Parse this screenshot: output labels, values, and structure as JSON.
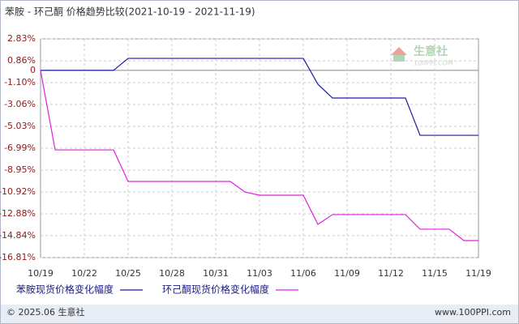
{
  "chart_data": {
    "type": "line",
    "title": "苯胺 - 环己酮 价格趋势比较(2021-10-19 - 2021-11-19)",
    "categories": [
      "10/19",
      null,
      null,
      "10/22",
      null,
      null,
      "10/25",
      null,
      null,
      "10/28",
      null,
      null,
      "10/31",
      null,
      null,
      "11/03",
      null,
      null,
      "11/06",
      null,
      null,
      "11/09",
      null,
      null,
      "11/12",
      null,
      null,
      "11/15",
      null,
      null,
      "11/19"
    ],
    "series": [
      {
        "name": "苯胺现货价格变化幅度",
        "color": "#1a1aa6",
        "values": [
          0,
          0,
          0,
          0,
          0,
          0,
          1.08,
          1.08,
          1.08,
          1.08,
          1.08,
          1.08,
          1.08,
          1.08,
          1.08,
          1.08,
          1.08,
          1.08,
          1.08,
          -1.24,
          -2.48,
          -2.48,
          -2.48,
          -2.48,
          -2.48,
          -2.48,
          -5.83,
          -5.83,
          -5.83,
          -5.83,
          -5.83
        ]
      },
      {
        "name": "环己酮现货价格变化幅度",
        "color": "#e020e0",
        "values": [
          0,
          -7.14,
          -7.14,
          -7.14,
          -7.14,
          -7.14,
          -9.97,
          -9.97,
          -9.97,
          -9.97,
          -9.97,
          -9.97,
          -9.97,
          -9.97,
          -10.92,
          -11.21,
          -11.21,
          -11.21,
          -11.21,
          -13.83,
          -12.95,
          -12.95,
          -12.95,
          -12.95,
          -12.95,
          -12.95,
          -14.26,
          -14.26,
          -14.26,
          -15.28,
          -15.28
        ]
      }
    ],
    "ylim": [
      -16.81,
      2.83
    ],
    "yticks": [
      {
        "value": 2.83,
        "label": "2.83%"
      },
      {
        "value": 0.86,
        "label": "0.86%"
      },
      0,
      {
        "value": -1.1,
        "label": "-1.10%"
      },
      {
        "value": -3.06,
        "label": "-3.06%"
      },
      {
        "value": -5.03,
        "label": "-5.03%"
      },
      {
        "value": -6.99,
        "label": "-6.99%"
      },
      {
        "value": -8.95,
        "label": "-8.95%"
      },
      {
        "value": -10.92,
        "label": "-10.92%"
      },
      {
        "value": -12.88,
        "label": "-12.88%"
      },
      {
        "value": -14.84,
        "label": "-14.84%"
      },
      {
        "value": -16.81,
        "label": "-16.81%"
      }
    ],
    "grid": true,
    "watermark": {
      "name": "生意社",
      "site": "100PPI.COM"
    },
    "footer": {
      "left": "© 2025.06 生意社",
      "right": "www.100PPI.com"
    }
  }
}
